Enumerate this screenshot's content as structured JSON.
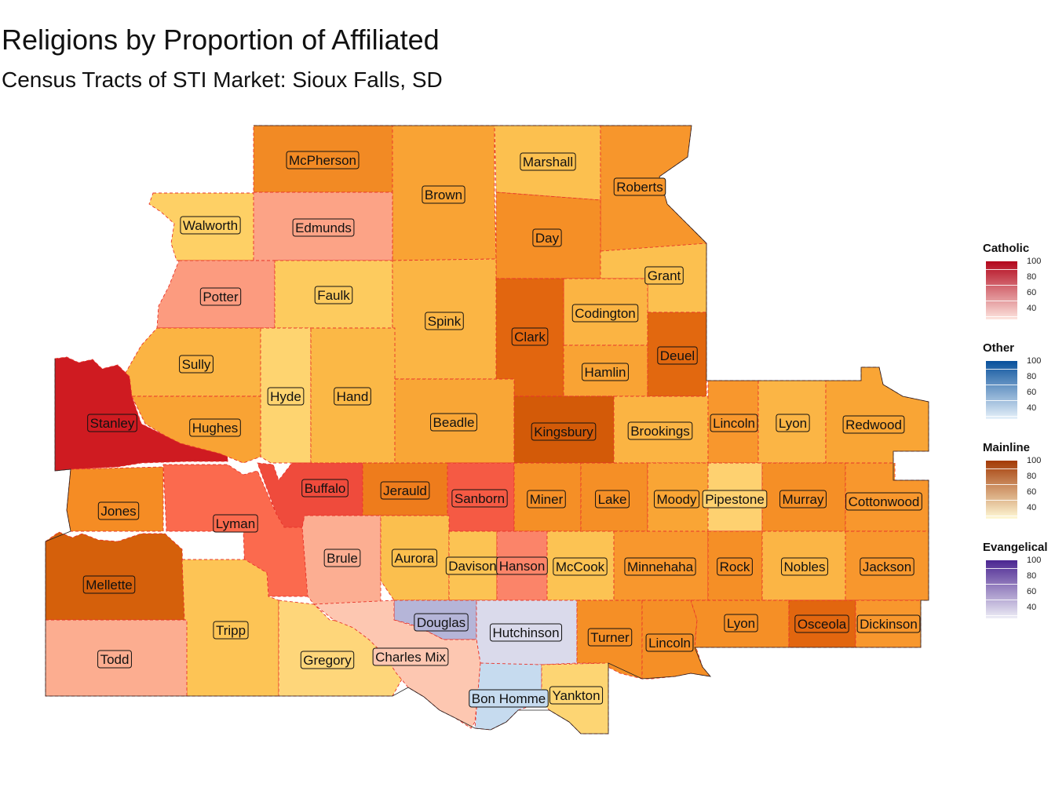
{
  "title": "Religions by Proportion of Affiliated",
  "subtitle": "Census Tracts of STI Market: Sioux Falls, SD",
  "legends": [
    {
      "name": "Catholic",
      "ticks": [
        "100",
        "80",
        "60",
        "40"
      ],
      "color_low": "#fde5df",
      "color_high": "#b2061b"
    },
    {
      "name": "Other",
      "ticks": [
        "100",
        "80",
        "60",
        "40"
      ],
      "color_low": "#e7f1fa",
      "color_high": "#08519c"
    },
    {
      "name": "Mainline",
      "ticks": [
        "100",
        "80",
        "60",
        "40"
      ],
      "color_low": "#fff9d6",
      "color_high": "#a33a05"
    },
    {
      "name": "Evangelical",
      "ticks": [
        "100",
        "80",
        "60",
        "40"
      ],
      "color_low": "#eeeef6",
      "color_high": "#4b2591"
    }
  ],
  "counties": [
    {
      "name": "McPherson",
      "religion": "Mainline",
      "color": "#f28a24"
    },
    {
      "name": "Brown",
      "religion": "Mainline",
      "color": "#f9a334"
    },
    {
      "name": "Marshall",
      "religion": "Mainline",
      "color": "#fcc04f"
    },
    {
      "name": "Roberts",
      "religion": "Mainline",
      "color": "#f7962c"
    },
    {
      "name": "Walworth",
      "religion": "Mainline",
      "color": "#fed065"
    },
    {
      "name": "Edmunds",
      "religion": "Catholic",
      "color": "#fca386"
    },
    {
      "name": "Day",
      "religion": "Mainline",
      "color": "#f58f26"
    },
    {
      "name": "Potter",
      "religion": "Catholic",
      "color": "#fc9b7f"
    },
    {
      "name": "Faulk",
      "religion": "Mainline",
      "color": "#fdcb5e"
    },
    {
      "name": "Spink",
      "religion": "Mainline",
      "color": "#fbb544"
    },
    {
      "name": "Grant",
      "religion": "Mainline",
      "color": "#fcc04f"
    },
    {
      "name": "Codington",
      "religion": "Mainline",
      "color": "#fbb443"
    },
    {
      "name": "Clark",
      "religion": "Mainline",
      "color": "#e2660f"
    },
    {
      "name": "Sully",
      "religion": "Mainline",
      "color": "#fbb443"
    },
    {
      "name": "Hyde",
      "religion": "Mainline",
      "color": "#fed470"
    },
    {
      "name": "Hand",
      "religion": "Mainline",
      "color": "#fbb846"
    },
    {
      "name": "Hamlin",
      "religion": "Mainline",
      "color": "#f9a334"
    },
    {
      "name": "Deuel",
      "religion": "Mainline",
      "color": "#e2680f"
    },
    {
      "name": "Stanley",
      "religion": "Catholic",
      "color": "#cf1b21"
    },
    {
      "name": "Hughes",
      "religion": "Mainline",
      "color": "#f9a334"
    },
    {
      "name": "Beadle",
      "religion": "Mainline",
      "color": "#f9a636"
    },
    {
      "name": "Kingsbury",
      "religion": "Mainline",
      "color": "#d35a08"
    },
    {
      "name": "Brookings",
      "religion": "Mainline",
      "color": "#fbb443"
    },
    {
      "name": "Lincoln",
      "religion": "Mainline",
      "color": "#f8972d"
    },
    {
      "name": "Lyon",
      "religion": "Mainline",
      "color": "#fbb545"
    },
    {
      "name": "Redwood",
      "religion": "Mainline",
      "color": "#f9a535"
    },
    {
      "name": "Buffalo",
      "religion": "Catholic",
      "color": "#ef4b3c"
    },
    {
      "name": "Jerauld",
      "religion": "Mainline",
      "color": "#ee7c1c"
    },
    {
      "name": "Sanborn",
      "religion": "Catholic",
      "color": "#f55a44"
    },
    {
      "name": "Miner",
      "religion": "Mainline",
      "color": "#f58f26"
    },
    {
      "name": "Lake",
      "religion": "Mainline",
      "color": "#f58f26"
    },
    {
      "name": "Moody",
      "religion": "Mainline",
      "color": "#f9a535"
    },
    {
      "name": "Pipestone",
      "religion": "Mainline",
      "color": "#fed170"
    },
    {
      "name": "Murray",
      "religion": "Mainline",
      "color": "#f58f26"
    },
    {
      "name": "Cottonwood",
      "religion": "Mainline",
      "color": "#f8972d"
    },
    {
      "name": "Jones",
      "religion": "Mainline",
      "color": "#f58c24"
    },
    {
      "name": "Lyman",
      "religion": "Catholic",
      "color": "#fb6a4e"
    },
    {
      "name": "Brule",
      "religion": "Catholic",
      "color": "#fcae92"
    },
    {
      "name": "Aurora",
      "religion": "Mainline",
      "color": "#fbbf4e"
    },
    {
      "name": "Davison",
      "religion": "Mainline",
      "color": "#fcc353"
    },
    {
      "name": "Hanson",
      "religion": "Catholic",
      "color": "#fb8469"
    },
    {
      "name": "McCook",
      "religion": "Mainline",
      "color": "#fcc353"
    },
    {
      "name": "Minnehaha",
      "religion": "Mainline",
      "color": "#f8972d"
    },
    {
      "name": "Rock",
      "religion": "Mainline",
      "color": "#f58f26"
    },
    {
      "name": "Nobles",
      "religion": "Mainline",
      "color": "#fbb545"
    },
    {
      "name": "Jackson",
      "religion": "Mainline",
      "color": "#f8972d"
    },
    {
      "name": "Mellette",
      "religion": "Mainline",
      "color": "#d5600b"
    },
    {
      "name": "Tripp",
      "religion": "Mainline",
      "color": "#fdc455"
    },
    {
      "name": "Douglas",
      "religion": "Evangelical",
      "color": "#b5b5d8"
    },
    {
      "name": "Hutchinson",
      "religion": "Evangelical",
      "color": "#dadaeb"
    },
    {
      "name": "Turner",
      "religion": "Mainline",
      "color": "#f58f26"
    },
    {
      "name": "Lincoln",
      "religion": "Mainline",
      "color": "#f58f26"
    },
    {
      "name": "Lyon",
      "religion": "Mainline",
      "color": "#f58f26"
    },
    {
      "name": "Osceola",
      "religion": "Mainline",
      "color": "#e2660f"
    },
    {
      "name": "Dickinson",
      "religion": "Mainline",
      "color": "#f8972d"
    },
    {
      "name": "Todd",
      "religion": "Catholic",
      "color": "#fcad90"
    },
    {
      "name": "Gregory",
      "religion": "Mainline",
      "color": "#fed67a"
    },
    {
      "name": "Charles Mix",
      "religion": "Catholic",
      "color": "#fdc7b1"
    },
    {
      "name": "Bon Homme",
      "religion": "Other",
      "color": "#c6dbef"
    },
    {
      "name": "Yankton",
      "religion": "Mainline",
      "color": "#fdd573"
    }
  ]
}
